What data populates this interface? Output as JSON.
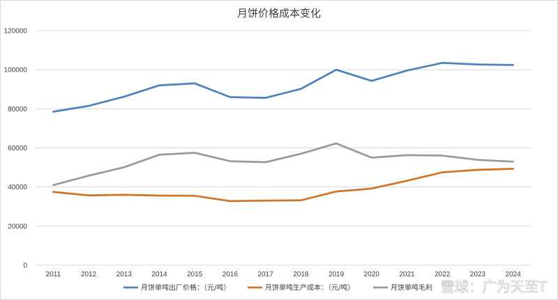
{
  "chart_data": {
    "type": "line",
    "title": "月饼价格成本变化",
    "xlabel": "",
    "ylabel": "",
    "categories": [
      "2011",
      "2012",
      "2013",
      "2014",
      "2015",
      "2016",
      "2017",
      "2018",
      "2019",
      "2020",
      "2021",
      "2022",
      "2023",
      "2024"
    ],
    "ylim": [
      0,
      120000
    ],
    "yticks": [
      0,
      20000,
      40000,
      60000,
      80000,
      100000,
      120000
    ],
    "ytick_labels": [
      "0",
      "20000",
      "40000",
      "60000",
      "80000",
      "100000",
      "120000"
    ],
    "grid": true,
    "legend_position": "bottom",
    "series": [
      {
        "name": "月饼单吨出厂价格：（元/吨）",
        "color": "#4f81bd",
        "values": [
          78500,
          81500,
          86200,
          92000,
          93000,
          86000,
          85600,
          90200,
          100000,
          94300,
          99600,
          103500,
          102700,
          102400
        ]
      },
      {
        "name": "月饼单吨生产成本：（元/吨）",
        "color": "#d0742a",
        "values": [
          37500,
          35700,
          36000,
          35600,
          35500,
          32800,
          33000,
          33200,
          37700,
          39200,
          43200,
          47500,
          48800,
          49300
        ]
      },
      {
        "name": "月饼单吨毛利",
        "color": "#9a9a9a",
        "values": [
          41000,
          45800,
          50100,
          56500,
          57500,
          53200,
          52700,
          57000,
          62300,
          55000,
          56300,
          56100,
          53900,
          53000
        ]
      }
    ]
  },
  "watermark": "雪球：广为天至T"
}
